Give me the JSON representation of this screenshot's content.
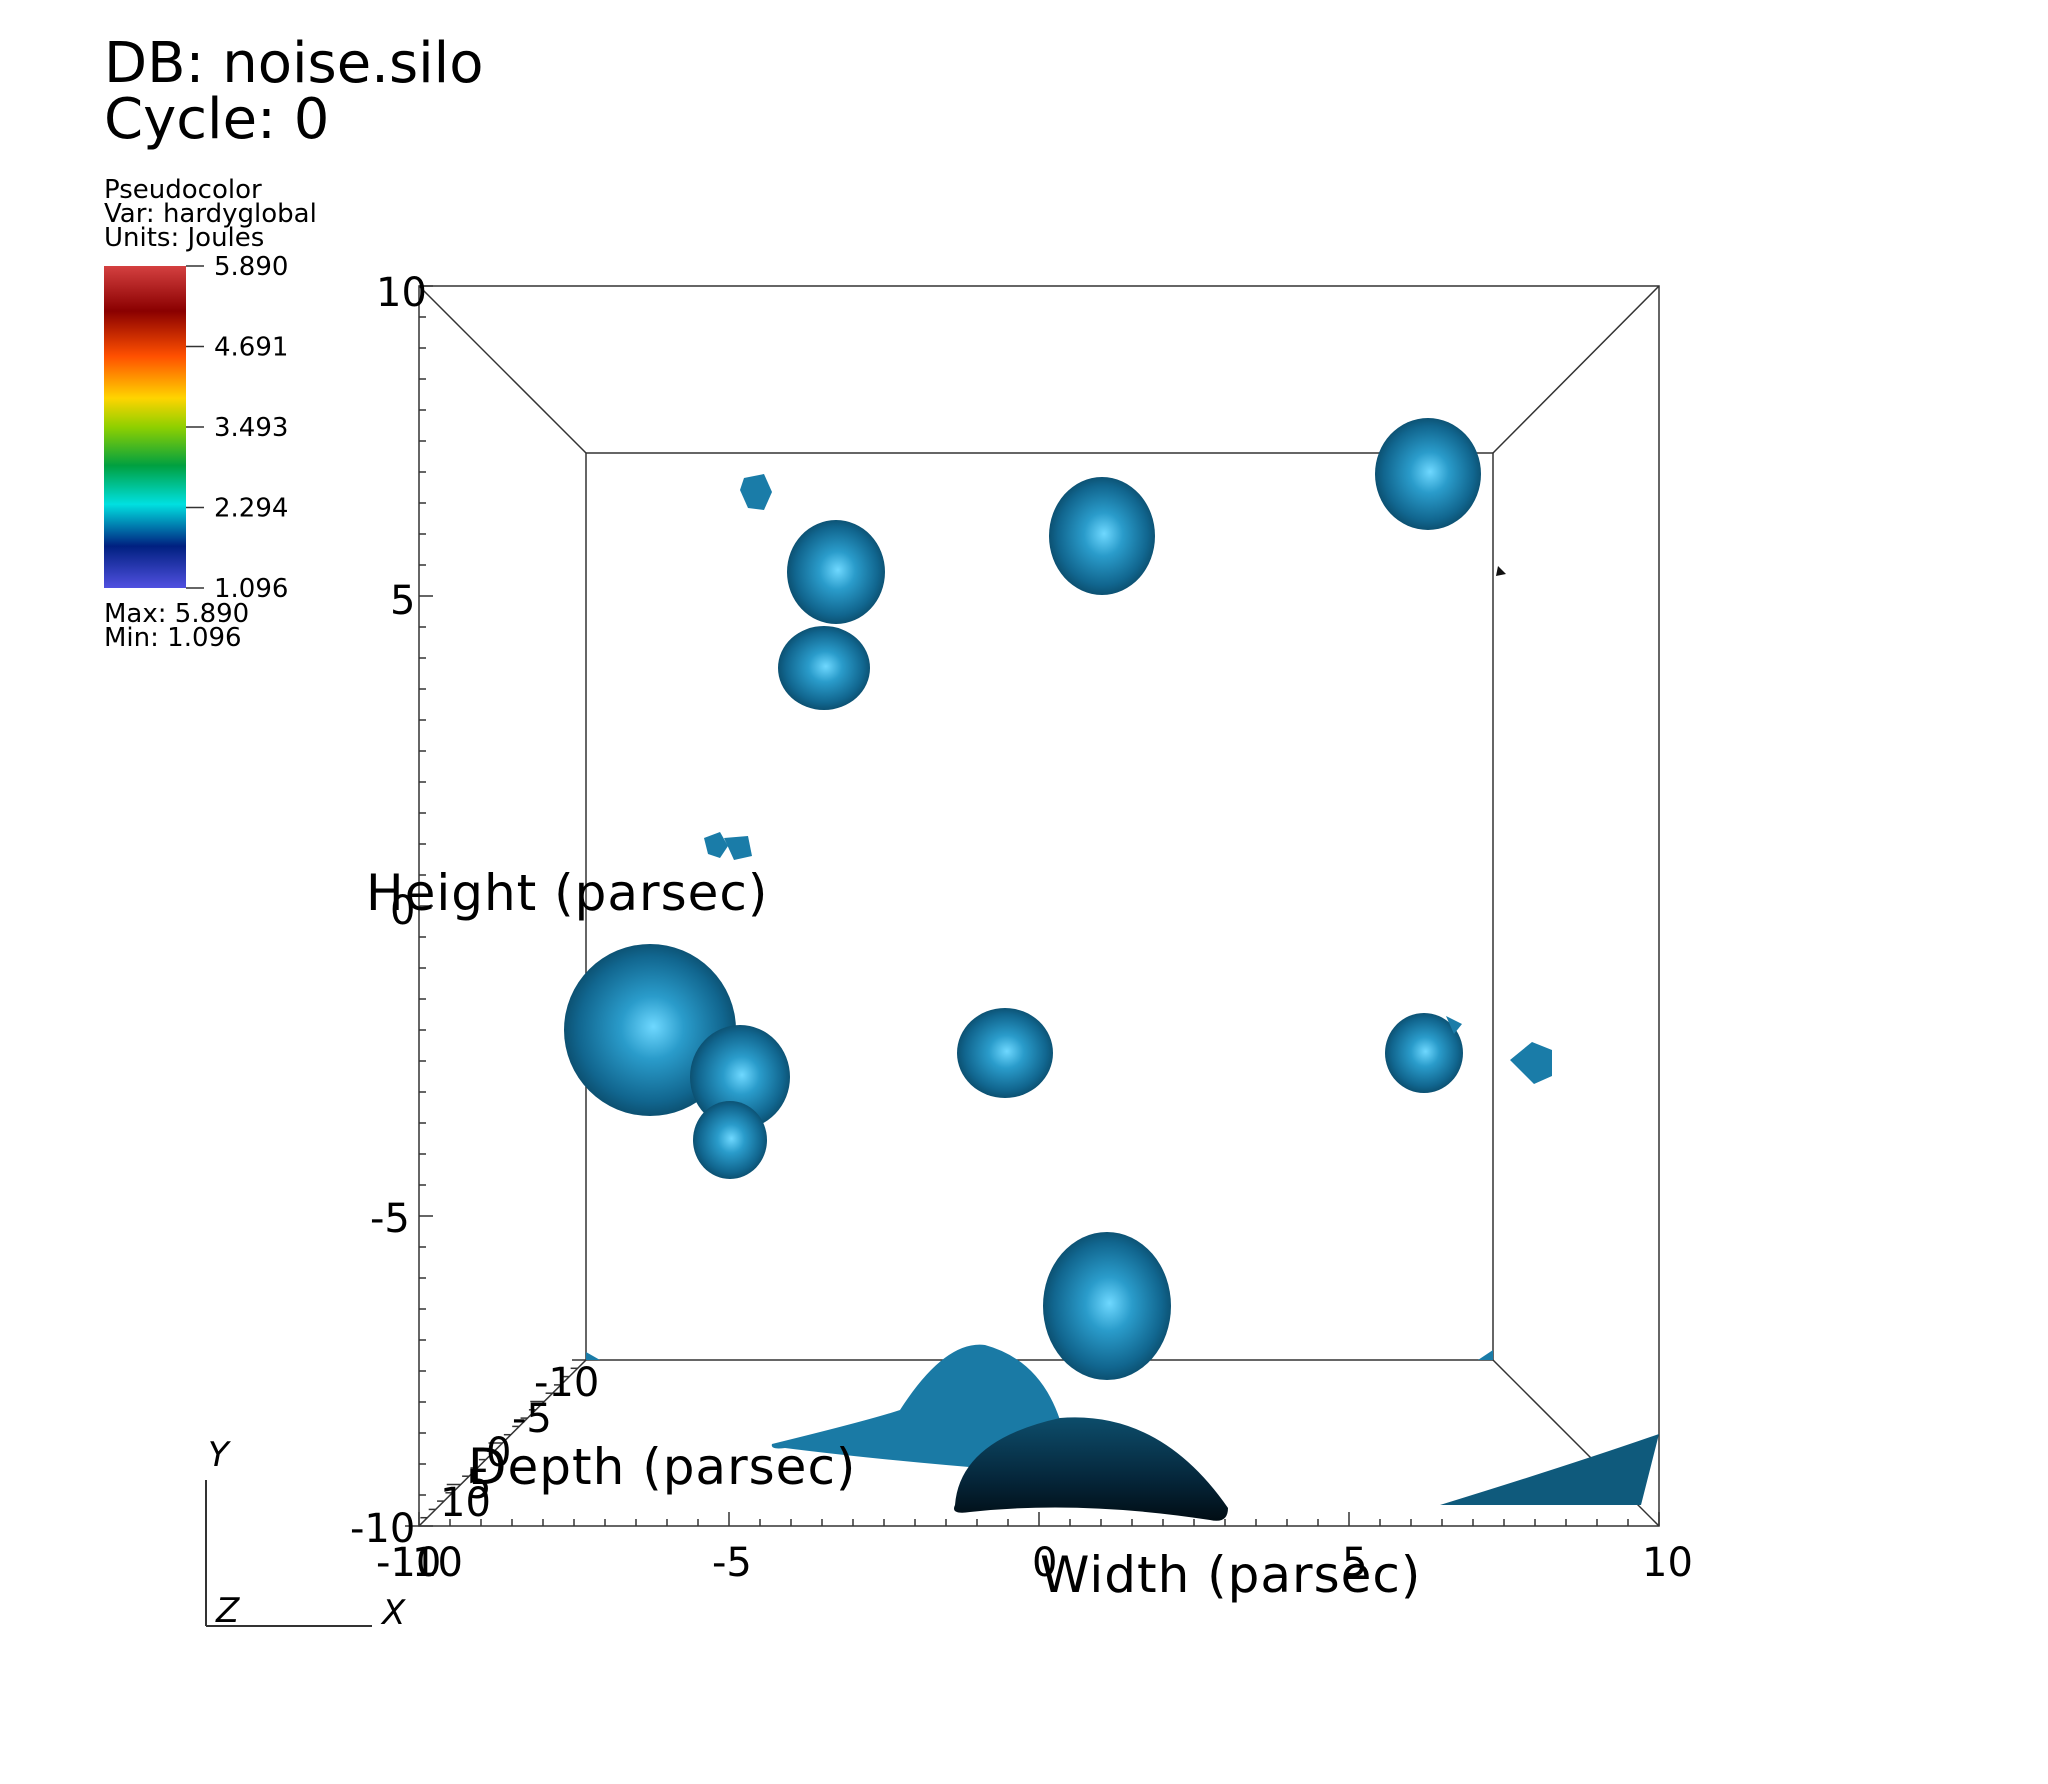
{
  "header": {
    "db": "DB: noise.silo",
    "cycle": "Cycle: 0"
  },
  "legend": {
    "plot_type": "Pseudocolor",
    "var": "Var: hardyglobal",
    "units": "Units: Joules",
    "ticks": [
      "5.890",
      "4.691",
      "3.493",
      "2.294",
      "1.096"
    ],
    "max": "Max:  5.890",
    "min": "Min:  1.096",
    "colors": [
      "#d44040",
      "#8a0000",
      "#ff5000",
      "#ffd400",
      "#8fd000",
      "#00a040",
      "#00e0e0",
      "#002080",
      "#5050e0"
    ]
  },
  "axes": {
    "height_title": "Height (parsec)",
    "width_title": "Width (parsec)",
    "depth_title": "Depth (parsec)",
    "y_ticks": [
      "10",
      "5",
      "0",
      "-5",
      "-10"
    ],
    "x_ticks": [
      "-10",
      "-5",
      "0",
      "5",
      "10"
    ],
    "x_ticks_extra": "10",
    "z_ticks": [
      "-10",
      "-5",
      "0",
      "5",
      "10"
    ]
  },
  "triad": {
    "y": "Y",
    "z": "Z",
    "x": "X"
  },
  "surface_color": "#1a7ca8"
}
